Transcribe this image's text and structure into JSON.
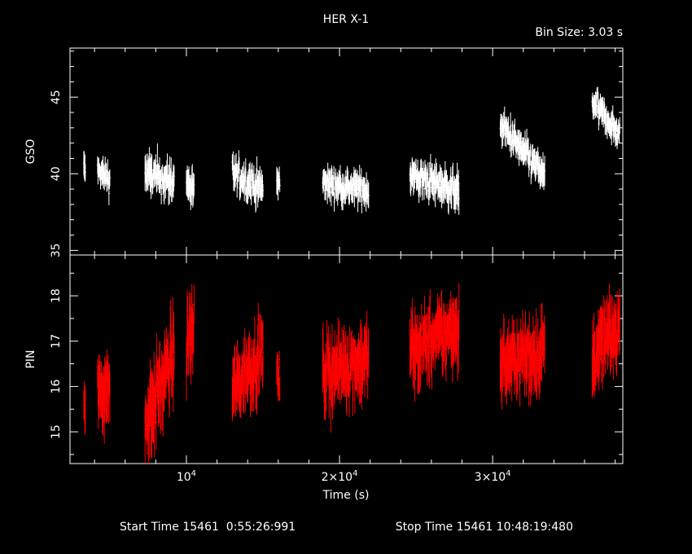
{
  "chart_data": {
    "type": "line",
    "title": "HER X-1",
    "bin_size_label": "Bin Size: 3.03 s",
    "xlabel": "Time (s)",
    "footer": {
      "start_label": "Start Time 15461  0:55:26:991",
      "stop_label": "Stop Time 15461 10:48:19:480"
    },
    "xlim": [
      2400,
      38500
    ],
    "x_ticks": [
      {
        "value": 10000,
        "base": "10",
        "exp": "4",
        "prefix": ""
      },
      {
        "value": 20000,
        "base": "10",
        "exp": "4",
        "prefix": "2×"
      },
      {
        "value": 30000,
        "base": "10",
        "exp": "4",
        "prefix": "3×"
      }
    ],
    "panels": [
      {
        "name": "top-panel",
        "ylabel": "GSO",
        "color": "#ffffff",
        "ylim": [
          34.7,
          48.2
        ],
        "y_ticks": [
          35,
          40,
          45
        ],
        "segments": [
          {
            "x_start": 3300,
            "x_end": 3400,
            "y_start": 40.3,
            "y_end": 40.3,
            "scatter": 1.1
          },
          {
            "x_start": 4200,
            "x_end": 5000,
            "y_start": 40.2,
            "y_end": 39.6,
            "scatter": 1.0
          },
          {
            "x_start": 7300,
            "x_end": 9200,
            "y_start": 40.0,
            "y_end": 39.5,
            "scatter": 1.3
          },
          {
            "x_start": 10000,
            "x_end": 10500,
            "y_start": 39.5,
            "y_end": 38.8,
            "scatter": 1.2
          },
          {
            "x_start": 13000,
            "x_end": 15000,
            "y_start": 40.0,
            "y_end": 39.0,
            "scatter": 1.2
          },
          {
            "x_start": 15900,
            "x_end": 16100,
            "y_start": 39.5,
            "y_end": 39.3,
            "scatter": 1.1
          },
          {
            "x_start": 18900,
            "x_end": 21900,
            "y_start": 39.4,
            "y_end": 38.9,
            "scatter": 1.1
          },
          {
            "x_start": 24600,
            "x_end": 27800,
            "y_start": 39.9,
            "y_end": 38.9,
            "scatter": 1.2
          },
          {
            "x_start": 30500,
            "x_end": 33400,
            "y_start": 43.2,
            "y_end": 39.8,
            "scatter": 1.1
          },
          {
            "x_start": 36500,
            "x_end": 38300,
            "y_start": 44.7,
            "y_end": 42.5,
            "scatter": 1.0
          }
        ]
      },
      {
        "name": "bottom-panel",
        "ylabel": "PIN",
        "color": "#ff0000",
        "ylim": [
          14.3,
          18.9
        ],
        "y_ticks": [
          15,
          16,
          17,
          18
        ],
        "segments": [
          {
            "x_start": 3300,
            "x_end": 3400,
            "y_start": 15.4,
            "y_end": 15.6,
            "scatter": 0.6
          },
          {
            "x_start": 4200,
            "x_end": 5000,
            "y_start": 16.0,
            "y_end": 15.9,
            "scatter": 0.8
          },
          {
            "x_start": 7300,
            "x_end": 9200,
            "y_start": 15.2,
            "y_end": 16.7,
            "scatter": 0.9
          },
          {
            "x_start": 10000,
            "x_end": 10500,
            "y_start": 16.9,
            "y_end": 17.3,
            "scatter": 0.9
          },
          {
            "x_start": 13000,
            "x_end": 15000,
            "y_start": 15.9,
            "y_end": 16.8,
            "scatter": 0.8
          },
          {
            "x_start": 15900,
            "x_end": 16100,
            "y_start": 16.2,
            "y_end": 16.2,
            "scatter": 0.5
          },
          {
            "x_start": 18900,
            "x_end": 21900,
            "y_start": 16.3,
            "y_end": 16.6,
            "scatter": 0.8
          },
          {
            "x_start": 24600,
            "x_end": 27800,
            "y_start": 16.8,
            "y_end": 17.3,
            "scatter": 0.8
          },
          {
            "x_start": 30500,
            "x_end": 33400,
            "y_start": 16.5,
            "y_end": 16.8,
            "scatter": 0.8
          },
          {
            "x_start": 36500,
            "x_end": 38300,
            "y_start": 16.7,
            "y_end": 17.3,
            "scatter": 0.8
          }
        ]
      }
    ],
    "grid": false,
    "legend": "none"
  }
}
